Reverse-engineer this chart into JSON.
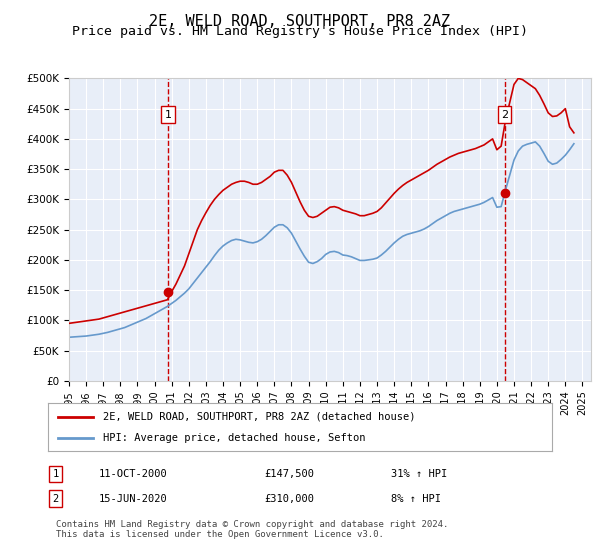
{
  "title": "2E, WELD ROAD, SOUTHPORT, PR8 2AZ",
  "subtitle": "Price paid vs. HM Land Registry's House Price Index (HPI)",
  "title_fontsize": 11,
  "subtitle_fontsize": 9.5,
  "background_color": "#e8eef8",
  "plot_bg_color": "#e8eef8",
  "ylim": [
    0,
    500000
  ],
  "yticks": [
    0,
    50000,
    100000,
    150000,
    200000,
    250000,
    300000,
    350000,
    400000,
    450000,
    500000
  ],
  "ytick_labels": [
    "£0",
    "£50K",
    "£100K",
    "£150K",
    "£200K",
    "£250K",
    "£300K",
    "£350K",
    "£400K",
    "£450K",
    "£500K"
  ],
  "xlim_start": 1995.0,
  "xlim_end": 2025.5,
  "xtick_years": [
    1995,
    1996,
    1997,
    1998,
    1999,
    2000,
    2001,
    2002,
    2003,
    2004,
    2005,
    2006,
    2007,
    2008,
    2009,
    2010,
    2011,
    2012,
    2013,
    2014,
    2015,
    2016,
    2017,
    2018,
    2019,
    2020,
    2021,
    2022,
    2023,
    2024,
    2025
  ],
  "hpi_color": "#6699cc",
  "price_color": "#cc0000",
  "marker1_x": 2000.78,
  "marker1_y": 147500,
  "marker1_label": "1",
  "marker2_x": 2020.45,
  "marker2_y": 310000,
  "marker2_label": "2",
  "vline_color": "#cc0000",
  "vline_style": "--",
  "legend_label_price": "2E, WELD ROAD, SOUTHPORT, PR8 2AZ (detached house)",
  "legend_label_hpi": "HPI: Average price, detached house, Sefton",
  "note1_label": "1",
  "note1_date": "11-OCT-2000",
  "note1_price": "£147,500",
  "note1_hpi": "31% ↑ HPI",
  "note2_label": "2",
  "note2_date": "15-JUN-2020",
  "note2_price": "£310,000",
  "note2_hpi": "8% ↑ HPI",
  "footer": "Contains HM Land Registry data © Crown copyright and database right 2024.\nThis data is licensed under the Open Government Licence v3.0.",
  "hpi_data_x": [
    1995.0,
    1995.25,
    1995.5,
    1995.75,
    1996.0,
    1996.25,
    1996.5,
    1996.75,
    1997.0,
    1997.25,
    1997.5,
    1997.75,
    1998.0,
    1998.25,
    1998.5,
    1998.75,
    1999.0,
    1999.25,
    1999.5,
    1999.75,
    2000.0,
    2000.25,
    2000.5,
    2000.75,
    2001.0,
    2001.25,
    2001.5,
    2001.75,
    2002.0,
    2002.25,
    2002.5,
    2002.75,
    2003.0,
    2003.25,
    2003.5,
    2003.75,
    2004.0,
    2004.25,
    2004.5,
    2004.75,
    2005.0,
    2005.25,
    2005.5,
    2005.75,
    2006.0,
    2006.25,
    2006.5,
    2006.75,
    2007.0,
    2007.25,
    2007.5,
    2007.75,
    2008.0,
    2008.25,
    2008.5,
    2008.75,
    2009.0,
    2009.25,
    2009.5,
    2009.75,
    2010.0,
    2010.25,
    2010.5,
    2010.75,
    2011.0,
    2011.25,
    2011.5,
    2011.75,
    2012.0,
    2012.25,
    2012.5,
    2012.75,
    2013.0,
    2013.25,
    2013.5,
    2013.75,
    2014.0,
    2014.25,
    2014.5,
    2014.75,
    2015.0,
    2015.25,
    2015.5,
    2015.75,
    2016.0,
    2016.25,
    2016.5,
    2016.75,
    2017.0,
    2017.25,
    2017.5,
    2017.75,
    2018.0,
    2018.25,
    2018.5,
    2018.75,
    2019.0,
    2019.25,
    2019.5,
    2019.75,
    2020.0,
    2020.25,
    2020.5,
    2020.75,
    2021.0,
    2021.25,
    2021.5,
    2021.75,
    2022.0,
    2022.25,
    2022.5,
    2022.75,
    2023.0,
    2023.25,
    2023.5,
    2023.75,
    2024.0,
    2024.25,
    2024.5
  ],
  "hpi_data_y": [
    72000,
    72500,
    73000,
    73500,
    74000,
    75000,
    76000,
    77000,
    78500,
    80000,
    82000,
    84000,
    86000,
    88000,
    91000,
    94000,
    97000,
    100000,
    103000,
    107000,
    111000,
    115000,
    119000,
    123000,
    128000,
    133000,
    139000,
    145000,
    152000,
    161000,
    170000,
    179000,
    188000,
    197000,
    207000,
    216000,
    223000,
    228000,
    232000,
    234000,
    233000,
    231000,
    229000,
    228000,
    230000,
    234000,
    240000,
    247000,
    254000,
    258000,
    258000,
    253000,
    244000,
    231000,
    218000,
    206000,
    196000,
    194000,
    197000,
    202000,
    209000,
    213000,
    214000,
    212000,
    208000,
    207000,
    205000,
    202000,
    199000,
    199000,
    200000,
    201000,
    203000,
    208000,
    214000,
    221000,
    228000,
    234000,
    239000,
    242000,
    244000,
    246000,
    248000,
    251000,
    255000,
    260000,
    265000,
    269000,
    273000,
    277000,
    280000,
    282000,
    284000,
    286000,
    288000,
    290000,
    292000,
    295000,
    299000,
    303000,
    287000,
    288000,
    315000,
    340000,
    365000,
    380000,
    388000,
    391000,
    393000,
    395000,
    388000,
    376000,
    363000,
    358000,
    360000,
    366000,
    373000,
    382000,
    392000
  ],
  "price_data_x": [
    1995.0,
    1995.25,
    1995.5,
    1995.75,
    1996.0,
    1996.25,
    1996.5,
    1996.75,
    1997.0,
    1997.25,
    1997.5,
    1997.75,
    1998.0,
    1998.25,
    1998.5,
    1998.75,
    1999.0,
    1999.25,
    1999.5,
    1999.75,
    2000.0,
    2000.25,
    2000.5,
    2000.75,
    2001.0,
    2001.25,
    2001.5,
    2001.75,
    2002.0,
    2002.25,
    2002.5,
    2002.75,
    2003.0,
    2003.25,
    2003.5,
    2003.75,
    2004.0,
    2004.25,
    2004.5,
    2004.75,
    2005.0,
    2005.25,
    2005.5,
    2005.75,
    2006.0,
    2006.25,
    2006.5,
    2006.75,
    2007.0,
    2007.25,
    2007.5,
    2007.75,
    2008.0,
    2008.25,
    2008.5,
    2008.75,
    2009.0,
    2009.25,
    2009.5,
    2009.75,
    2010.0,
    2010.25,
    2010.5,
    2010.75,
    2011.0,
    2011.25,
    2011.5,
    2011.75,
    2012.0,
    2012.25,
    2012.5,
    2012.75,
    2013.0,
    2013.25,
    2013.5,
    2013.75,
    2014.0,
    2014.25,
    2014.5,
    2014.75,
    2015.0,
    2015.25,
    2015.5,
    2015.75,
    2016.0,
    2016.25,
    2016.5,
    2016.75,
    2017.0,
    2017.25,
    2017.5,
    2017.75,
    2018.0,
    2018.25,
    2018.5,
    2018.75,
    2019.0,
    2019.25,
    2019.5,
    2019.75,
    2020.0,
    2020.25,
    2020.5,
    2020.75,
    2021.0,
    2021.25,
    2021.5,
    2021.75,
    2022.0,
    2022.25,
    2022.5,
    2022.75,
    2023.0,
    2023.25,
    2023.5,
    2023.75,
    2024.0,
    2024.25,
    2024.5
  ],
  "price_data_y": [
    95000,
    96000,
    97000,
    98000,
    99000,
    100000,
    101000,
    102000,
    104000,
    106000,
    108000,
    110000,
    112000,
    114000,
    116000,
    118000,
    120000,
    122000,
    124000,
    126000,
    128000,
    130000,
    132000,
    134000,
    147500,
    160000,
    175000,
    190000,
    210000,
    230000,
    250000,
    265000,
    278000,
    290000,
    300000,
    308000,
    315000,
    320000,
    325000,
    328000,
    330000,
    330000,
    328000,
    325000,
    325000,
    328000,
    333000,
    338000,
    345000,
    348000,
    348000,
    340000,
    328000,
    312000,
    296000,
    282000,
    272000,
    270000,
    272000,
    277000,
    282000,
    287000,
    288000,
    286000,
    282000,
    280000,
    278000,
    276000,
    273000,
    273000,
    275000,
    277000,
    280000,
    286000,
    294000,
    302000,
    310000,
    317000,
    323000,
    328000,
    332000,
    336000,
    340000,
    344000,
    348000,
    353000,
    358000,
    362000,
    366000,
    370000,
    373000,
    376000,
    378000,
    380000,
    382000,
    384000,
    387000,
    390000,
    395000,
    400000,
    382000,
    388000,
    430000,
    460000,
    490000,
    500000,
    498000,
    493000,
    488000,
    483000,
    472000,
    458000,
    443000,
    437000,
    438000,
    443000,
    450000,
    420000,
    410000
  ]
}
